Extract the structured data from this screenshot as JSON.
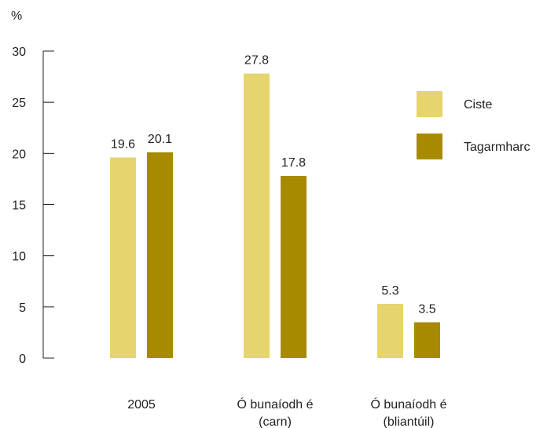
{
  "chart_data": {
    "type": "bar",
    "ylabel": "%",
    "ylim": [
      0,
      30
    ],
    "yticks": [
      0,
      5,
      10,
      15,
      20,
      25,
      30
    ],
    "categories": [
      [
        "2005"
      ],
      [
        "Ó bunaíodh é",
        "(carn)"
      ],
      [
        "Ó bunaíodh é",
        "(bliantúil)"
      ]
    ],
    "series": [
      {
        "name": "Ciste",
        "color": "#e6d46e",
        "values": [
          19.6,
          27.8,
          5.3
        ]
      },
      {
        "name": "Tagarmharc",
        "color": "#a88a00",
        "values": [
          20.1,
          17.8,
          3.5
        ]
      }
    ],
    "value_labels": [
      [
        "19.6",
        "27.8",
        "5.3"
      ],
      [
        "20.1",
        "17.8",
        "3.5"
      ]
    ],
    "legend_position": "right",
    "grid": false
  }
}
